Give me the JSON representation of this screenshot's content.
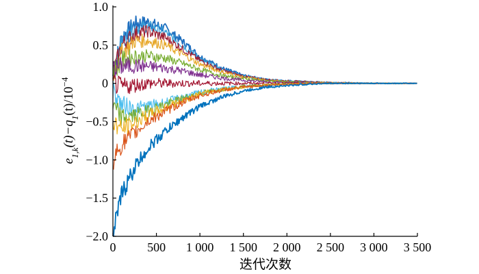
{
  "chart_data": {
    "type": "line",
    "title": "",
    "xlabel": "迭代次数",
    "ylabel_parts": {
      "e": "e",
      "e_sub": "1,k",
      "t1": "(t)−",
      "q": "q",
      "q_sub": "1",
      "t2": "(t)/10",
      "exp": "−4"
    },
    "xlim": [
      0,
      3500
    ],
    "ylim": [
      -2.0,
      1.0
    ],
    "x_ticks": [
      0,
      500,
      1000,
      1500,
      2000,
      2500,
      3000,
      3500
    ],
    "x_tick_labels": [
      "0",
      "500",
      "1 000",
      "1 500",
      "2 000",
      "2 500",
      "3 000",
      "3 500"
    ],
    "y_ticks": [
      1.0,
      0.5,
      0,
      -0.5,
      -1.0,
      -1.5,
      -2.0
    ],
    "y_tick_labels": [
      "1.0",
      "0.5",
      "0",
      "−0.5",
      "−1.0",
      "−1.5",
      "−2.0"
    ],
    "grid": false,
    "series": [
      {
        "color": "#1f6fbf",
        "values": [
          0.1,
          0.6,
          0.78,
          0.8,
          0.72,
          0.55,
          0.35,
          0.2,
          0.1,
          0.05,
          0.03,
          0.02,
          0.01,
          0.0,
          0.0
        ]
      },
      {
        "color": "#3aa0d8",
        "values": [
          0.1,
          0.55,
          0.72,
          0.75,
          0.67,
          0.5,
          0.32,
          0.18,
          0.1,
          0.05,
          0.03,
          0.02,
          0.01,
          0.0,
          0.0
        ]
      },
      {
        "color": "#9b1b30",
        "values": [
          0.1,
          0.5,
          0.65,
          0.68,
          0.6,
          0.45,
          0.3,
          0.17,
          0.09,
          0.05,
          0.03,
          0.02,
          0.01,
          0.0,
          0.0
        ]
      },
      {
        "color": "#e7a82a",
        "values": [
          0.1,
          0.4,
          0.55,
          0.56,
          0.5,
          0.38,
          0.25,
          0.15,
          0.08,
          0.04,
          0.02,
          0.01,
          0.01,
          0.0,
          0.0
        ]
      },
      {
        "color": "#77ac30",
        "values": [
          0.15,
          0.3,
          0.35,
          0.36,
          0.33,
          0.26,
          0.18,
          0.1,
          0.06,
          0.03,
          0.02,
          0.01,
          0.0,
          0.0,
          0.0
        ]
      },
      {
        "color": "#7e2f8e",
        "values": [
          0.2,
          0.22,
          0.23,
          0.22,
          0.2,
          0.16,
          0.11,
          0.07,
          0.04,
          0.02,
          0.01,
          0.01,
          0.0,
          0.0,
          0.0
        ]
      },
      {
        "color": "#a2142f",
        "values": [
          0.0,
          -0.05,
          -0.02,
          0.0,
          0.0,
          0.0,
          0.0,
          0.0,
          0.0,
          0.0,
          0.0,
          0.0,
          0.0,
          0.0,
          0.0
        ]
      },
      {
        "color": "#4dbeee",
        "values": [
          -0.1,
          -0.28,
          -0.33,
          -0.3,
          -0.25,
          -0.18,
          -0.12,
          -0.07,
          -0.04,
          -0.02,
          -0.01,
          0.0,
          0.0,
          0.0,
          0.0
        ]
      },
      {
        "color": "#77ac30",
        "values": [
          -0.3,
          -0.45,
          -0.42,
          -0.36,
          -0.28,
          -0.2,
          -0.13,
          -0.08,
          -0.04,
          -0.02,
          -0.01,
          0.0,
          0.0,
          0.0,
          0.0
        ]
      },
      {
        "color": "#edb120",
        "values": [
          -0.5,
          -0.6,
          -0.52,
          -0.42,
          -0.32,
          -0.22,
          -0.14,
          -0.08,
          -0.05,
          -0.02,
          -0.01,
          0.0,
          0.0,
          0.0,
          0.0
        ]
      },
      {
        "color": "#d95319",
        "values": [
          -1.0,
          -0.8,
          -0.65,
          -0.5,
          -0.37,
          -0.25,
          -0.16,
          -0.09,
          -0.05,
          -0.03,
          -0.01,
          0.0,
          0.0,
          0.0,
          0.0
        ]
      },
      {
        "color": "#0072bd",
        "values": [
          -2.0,
          -1.45,
          -1.1,
          -0.85,
          -0.63,
          -0.45,
          -0.3,
          -0.18,
          -0.1,
          -0.05,
          -0.03,
          -0.01,
          0.0,
          0.0,
          0.0
        ]
      }
    ],
    "series_x": [
      0,
      100,
      250,
      400,
      600,
      800,
      1000,
      1250,
      1500,
      1750,
      2000,
      2250,
      2500,
      3000,
      3500
    ]
  }
}
